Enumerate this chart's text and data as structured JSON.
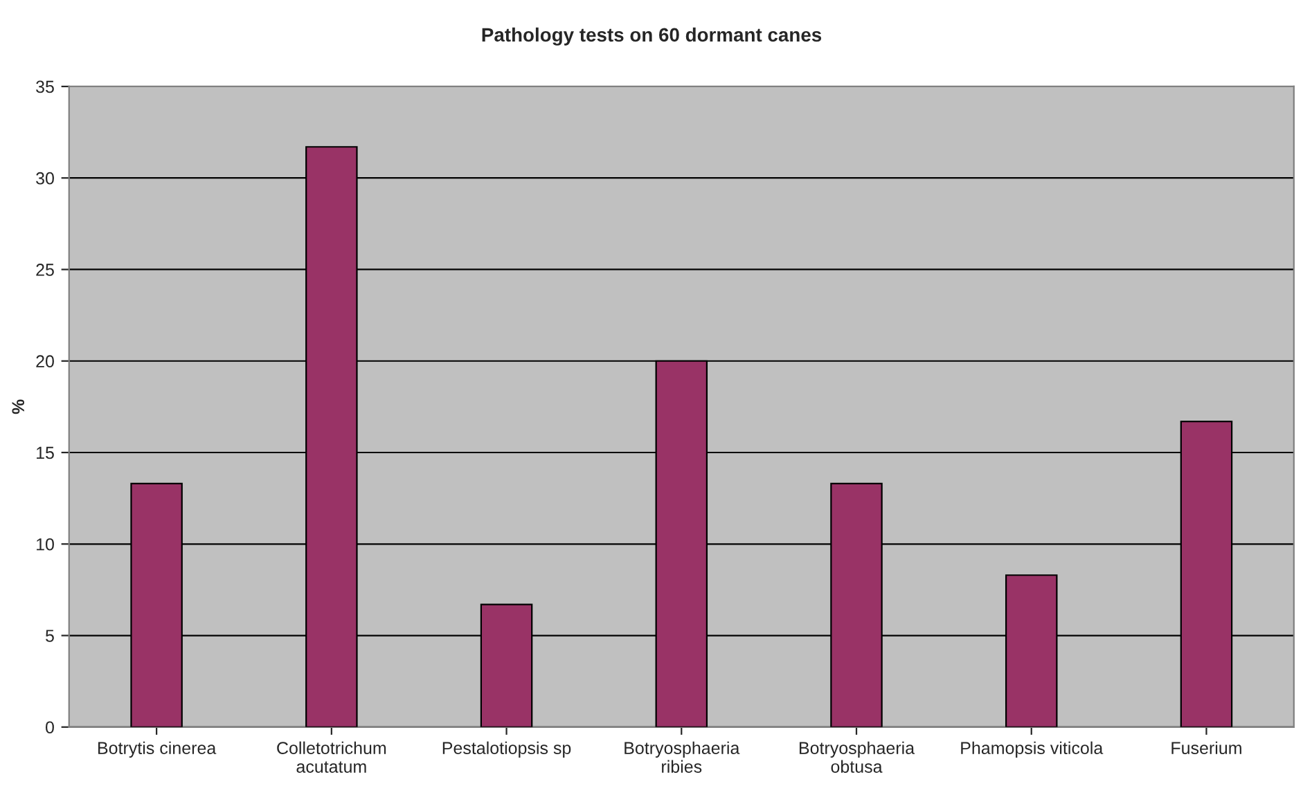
{
  "chart_data": {
    "type": "bar",
    "title": "Pathology tests on 60 dormant canes",
    "ylabel": "%",
    "categories": [
      "Botrytis cinerea",
      "Colletotrichum\nacutatum",
      "Pestalotiopsis sp",
      "Botryosphaeria\nribies",
      "Botryosphaeria\nobtusa",
      "Phamopsis viticola",
      "Fuserium"
    ],
    "values": [
      13.3,
      31.7,
      6.7,
      20,
      13.3,
      8.3,
      16.7
    ],
    "color": "#993366",
    "ylim": [
      0,
      35
    ],
    "yticks": [
      0,
      5,
      10,
      15,
      20,
      25,
      30,
      35
    ],
    "grid": "y",
    "legend": false
  }
}
